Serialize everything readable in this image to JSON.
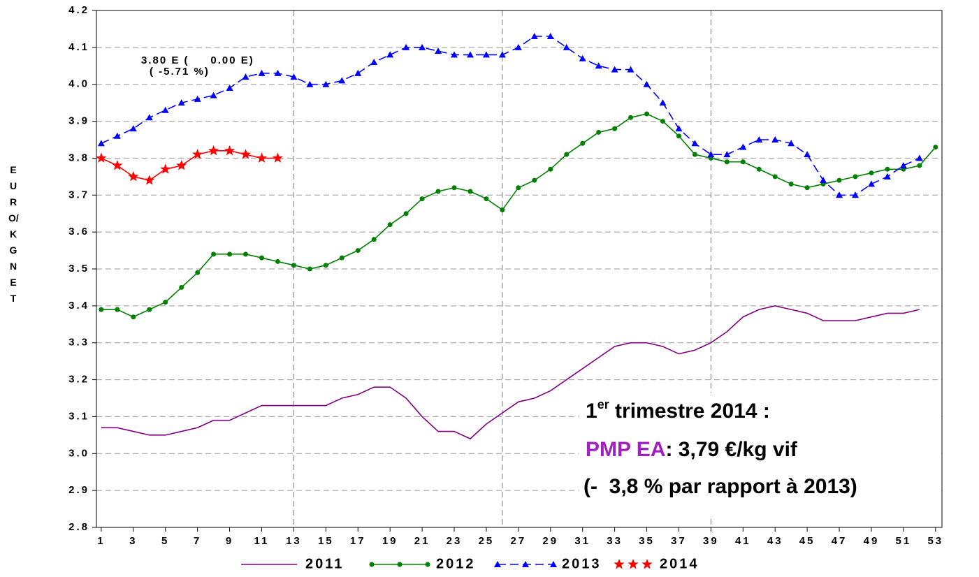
{
  "chart_data": {
    "type": "line",
    "y_label": "EURO/KG NET",
    "x": [
      1,
      2,
      3,
      4,
      5,
      6,
      7,
      8,
      9,
      10,
      11,
      12,
      13,
      14,
      15,
      16,
      17,
      18,
      19,
      20,
      21,
      22,
      23,
      24,
      25,
      26,
      27,
      28,
      29,
      30,
      31,
      32,
      33,
      34,
      35,
      36,
      37,
      38,
      39,
      40,
      41,
      42,
      43,
      44,
      45,
      46,
      47,
      48,
      49,
      50,
      51,
      52,
      53
    ],
    "xlim": [
      0.7,
      53.4
    ],
    "xticks": [
      1,
      3,
      5,
      7,
      9,
      11,
      13,
      15,
      17,
      19,
      21,
      23,
      25,
      27,
      29,
      31,
      33,
      35,
      37,
      39,
      41,
      43,
      45,
      47,
      49,
      51,
      53
    ],
    "xgrid_lines": [
      13,
      26,
      39
    ],
    "ylim": [
      2.8,
      4.2
    ],
    "yticks": [
      2.8,
      2.9,
      {
        "value": 3,
        "label": "3.0"
      },
      3.1,
      3.2,
      3.3,
      3.4,
      3.5,
      3.6,
      3.7,
      3.8,
      3.9,
      {
        "value": 4,
        "label": "4.0"
      },
      4.1,
      4.2
    ],
    "grid": true,
    "series": [
      {
        "name": "2011",
        "color": "#800080",
        "marker": "none",
        "dashed": false,
        "values": [
          3.07,
          3.07,
          3.06,
          3.05,
          3.05,
          3.06,
          3.07,
          3.09,
          3.09,
          3.11,
          3.13,
          3.13,
          3.13,
          3.13,
          3.13,
          3.15,
          3.16,
          3.18,
          3.18,
          3.15,
          3.1,
          3.06,
          3.06,
          3.04,
          3.08,
          3.11,
          3.14,
          3.15,
          3.17,
          3.2,
          3.23,
          3.26,
          3.29,
          3.3,
          3.3,
          3.29,
          3.27,
          3.28,
          3.3,
          3.33,
          3.37,
          3.39,
          3.4,
          3.39,
          3.38,
          3.36,
          3.36,
          3.36,
          3.37,
          3.38,
          3.38,
          3.39,
          null
        ]
      },
      {
        "name": "2012",
        "color": "#008000",
        "marker": "circle",
        "dashed": false,
        "values": [
          3.39,
          3.39,
          3.37,
          3.39,
          3.41,
          3.45,
          3.49,
          3.54,
          3.54,
          3.54,
          3.53,
          3.52,
          3.51,
          3.5,
          3.51,
          3.53,
          3.55,
          3.58,
          3.62,
          3.65,
          3.69,
          3.71,
          3.72,
          3.71,
          3.69,
          3.66,
          3.72,
          3.74,
          3.77,
          3.81,
          3.84,
          3.87,
          3.88,
          3.91,
          3.92,
          3.9,
          3.86,
          3.81,
          3.8,
          3.79,
          3.79,
          3.77,
          3.75,
          3.73,
          3.72,
          3.73,
          3.74,
          3.75,
          3.76,
          3.77,
          3.77,
          3.78,
          3.83
        ]
      },
      {
        "name": "2013",
        "color": "#0000ff",
        "marker": "triangle",
        "dashed": true,
        "values": [
          3.84,
          3.86,
          3.88,
          3.91,
          3.93,
          3.95,
          3.96,
          3.97,
          3.99,
          4.02,
          4.03,
          4.03,
          4.02,
          4.0,
          4.0,
          4.01,
          4.03,
          4.06,
          4.08,
          4.1,
          4.1,
          4.09,
          4.08,
          4.08,
          4.08,
          4.08,
          4.1,
          4.13,
          4.13,
          4.1,
          4.07,
          4.05,
          4.04,
          4.04,
          4.0,
          3.95,
          3.88,
          3.84,
          3.81,
          3.81,
          3.83,
          3.85,
          3.85,
          3.84,
          3.81,
          3.74,
          3.7,
          3.7,
          3.73,
          3.75,
          3.78,
          3.8,
          null
        ]
      },
      {
        "name": "2014",
        "color": "#ff0000",
        "marker": "star",
        "dashed": false,
        "values": [
          3.8,
          3.78,
          3.75,
          3.74,
          3.77,
          3.78,
          3.81,
          3.82,
          3.82,
          3.81,
          3.8,
          3.8,
          null,
          null,
          null,
          null,
          null,
          null,
          null,
          null,
          null,
          null,
          null,
          null,
          null,
          null,
          null,
          null,
          null,
          null,
          null,
          null,
          null,
          null,
          null,
          null,
          null,
          null,
          null,
          null,
          null,
          null,
          null,
          null,
          null,
          null,
          null,
          null,
          null,
          null,
          null,
          null,
          null
        ]
      }
    ],
    "annotations": [
      "3.80 E (     0.00 E)",
      "( -5.71 %)"
    ],
    "note": {
      "line1": [
        "1",
        "er",
        " trimestre 2014 :"
      ],
      "line2": [
        "PMP EA",
        ": 3,79 €/kg vif"
      ],
      "line3": "(-  3,8 % par rapport à 2013)"
    }
  }
}
